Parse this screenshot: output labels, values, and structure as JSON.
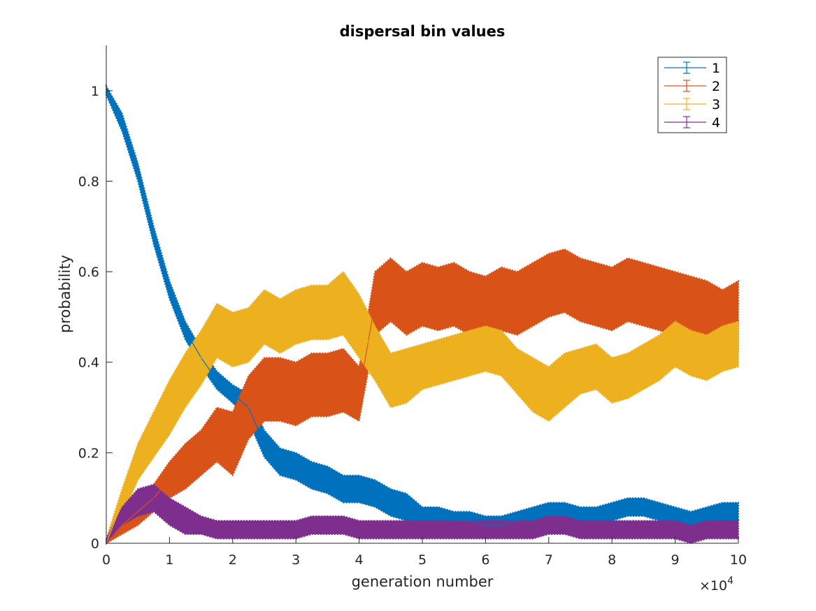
{
  "chart_data": {
    "type": "line",
    "title": "dispersal bin values",
    "xlabel": "generation number",
    "ylabel": "probability",
    "x_exponent_label": "×10",
    "x_exponent_power": "4",
    "xlim": [
      0,
      10
    ],
    "ylim": [
      0,
      1.1
    ],
    "xticks": [
      "0",
      "1",
      "2",
      "3",
      "4",
      "5",
      "6",
      "7",
      "8",
      "9",
      "10"
    ],
    "yticks": [
      "0",
      "0.2",
      "0.4",
      "0.6",
      "0.8",
      "1"
    ],
    "grid": false,
    "legend_position": "top-right",
    "x": [
      0,
      0.25,
      0.5,
      0.75,
      1,
      1.25,
      1.5,
      1.75,
      2,
      2.25,
      2.5,
      2.75,
      3,
      3.25,
      3.5,
      3.75,
      4,
      4.25,
      4.5,
      4.75,
      5,
      5.25,
      5.5,
      5.75,
      6,
      6.25,
      6.5,
      6.75,
      7,
      7.25,
      7.5,
      7.75,
      8,
      8.25,
      8.5,
      8.75,
      9,
      9.25,
      9.5,
      9.75,
      10
    ],
    "series": [
      {
        "name": "1",
        "color": "#0072BD",
        "values": [
          1.0,
          0.93,
          0.82,
          0.68,
          0.56,
          0.47,
          0.41,
          0.36,
          0.33,
          0.3,
          0.22,
          0.18,
          0.17,
          0.15,
          0.14,
          0.12,
          0.12,
          0.11,
          0.09,
          0.08,
          0.06,
          0.06,
          0.05,
          0.05,
          0.04,
          0.04,
          0.05,
          0.06,
          0.07,
          0.07,
          0.06,
          0.06,
          0.07,
          0.08,
          0.08,
          0.07,
          0.06,
          0.05,
          0.06,
          0.07,
          0.07
        ],
        "error": [
          0.01,
          0.02,
          0.02,
          0.02,
          0.02,
          0.02,
          0.02,
          0.02,
          0.02,
          0.03,
          0.03,
          0.03,
          0.03,
          0.03,
          0.03,
          0.03,
          0.03,
          0.03,
          0.03,
          0.03,
          0.02,
          0.02,
          0.02,
          0.02,
          0.02,
          0.02,
          0.02,
          0.02,
          0.02,
          0.02,
          0.02,
          0.02,
          0.02,
          0.02,
          0.02,
          0.02,
          0.02,
          0.02,
          0.02,
          0.02,
          0.02
        ]
      },
      {
        "name": "2",
        "color": "#D95319",
        "values": [
          0.0,
          0.04,
          0.07,
          0.1,
          0.14,
          0.17,
          0.2,
          0.24,
          0.22,
          0.3,
          0.34,
          0.34,
          0.33,
          0.35,
          0.35,
          0.36,
          0.33,
          0.53,
          0.56,
          0.53,
          0.55,
          0.54,
          0.55,
          0.53,
          0.52,
          0.54,
          0.53,
          0.55,
          0.57,
          0.58,
          0.56,
          0.55,
          0.54,
          0.56,
          0.55,
          0.54,
          0.53,
          0.52,
          0.51,
          0.49,
          0.5
        ],
        "error": [
          0.01,
          0.02,
          0.03,
          0.03,
          0.04,
          0.05,
          0.05,
          0.06,
          0.07,
          0.07,
          0.07,
          0.07,
          0.07,
          0.07,
          0.07,
          0.07,
          0.06,
          0.07,
          0.07,
          0.07,
          0.07,
          0.07,
          0.07,
          0.07,
          0.07,
          0.07,
          0.07,
          0.07,
          0.07,
          0.07,
          0.07,
          0.07,
          0.07,
          0.07,
          0.07,
          0.07,
          0.07,
          0.07,
          0.07,
          0.07,
          0.08
        ]
      },
      {
        "name": "3",
        "color": "#EDB120",
        "values": [
          0.0,
          0.09,
          0.18,
          0.24,
          0.3,
          0.36,
          0.41,
          0.47,
          0.45,
          0.46,
          0.5,
          0.48,
          0.5,
          0.51,
          0.51,
          0.53,
          0.48,
          0.42,
          0.36,
          0.37,
          0.39,
          0.4,
          0.41,
          0.42,
          0.43,
          0.42,
          0.38,
          0.35,
          0.33,
          0.36,
          0.38,
          0.39,
          0.36,
          0.37,
          0.39,
          0.41,
          0.44,
          0.42,
          0.41,
          0.43,
          0.44
        ],
        "error": [
          0.01,
          0.03,
          0.04,
          0.05,
          0.06,
          0.06,
          0.06,
          0.06,
          0.06,
          0.06,
          0.06,
          0.06,
          0.06,
          0.06,
          0.06,
          0.07,
          0.07,
          0.06,
          0.06,
          0.06,
          0.05,
          0.05,
          0.05,
          0.05,
          0.05,
          0.05,
          0.05,
          0.06,
          0.06,
          0.06,
          0.05,
          0.05,
          0.05,
          0.05,
          0.05,
          0.05,
          0.05,
          0.05,
          0.05,
          0.05,
          0.05
        ]
      },
      {
        "name": "4",
        "color": "#7E2F8E",
        "values": [
          0.0,
          0.06,
          0.09,
          0.1,
          0.07,
          0.05,
          0.04,
          0.03,
          0.03,
          0.03,
          0.03,
          0.03,
          0.03,
          0.04,
          0.04,
          0.04,
          0.03,
          0.03,
          0.03,
          0.03,
          0.03,
          0.03,
          0.03,
          0.03,
          0.03,
          0.03,
          0.03,
          0.03,
          0.04,
          0.04,
          0.03,
          0.03,
          0.03,
          0.03,
          0.03,
          0.03,
          0.03,
          0.02,
          0.03,
          0.03,
          0.03
        ],
        "error": [
          0.01,
          0.02,
          0.03,
          0.03,
          0.03,
          0.03,
          0.02,
          0.02,
          0.02,
          0.02,
          0.02,
          0.02,
          0.02,
          0.02,
          0.02,
          0.02,
          0.02,
          0.02,
          0.02,
          0.02,
          0.02,
          0.02,
          0.02,
          0.02,
          0.02,
          0.02,
          0.02,
          0.02,
          0.02,
          0.02,
          0.02,
          0.02,
          0.02,
          0.02,
          0.02,
          0.02,
          0.02,
          0.02,
          0.02,
          0.02,
          0.02
        ]
      }
    ]
  }
}
